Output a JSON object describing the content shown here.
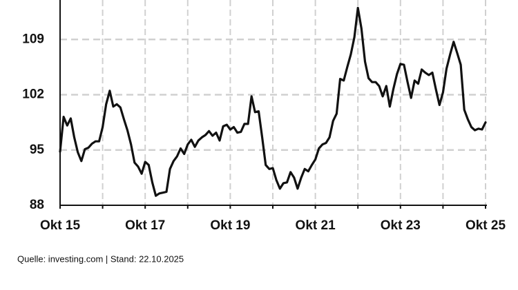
{
  "chart_data": {
    "type": "line",
    "source": "Quelle: investing.com | Stand: 22.10.2025",
    "x": [
      "2015-10",
      "2015-11",
      "2015-12",
      "2016-01",
      "2016-02",
      "2016-03",
      "2016-04",
      "2016-05",
      "2016-06",
      "2016-07",
      "2016-08",
      "2016-09",
      "2016-10",
      "2016-11",
      "2016-12",
      "2017-01",
      "2017-02",
      "2017-03",
      "2017-04",
      "2017-05",
      "2017-06",
      "2017-07",
      "2017-08",
      "2017-09",
      "2017-10",
      "2017-11",
      "2017-12",
      "2018-01",
      "2018-02",
      "2018-03",
      "2018-04",
      "2018-05",
      "2018-06",
      "2018-07",
      "2018-08",
      "2018-09",
      "2018-10",
      "2018-11",
      "2018-12",
      "2019-01",
      "2019-02",
      "2019-03",
      "2019-04",
      "2019-05",
      "2019-06",
      "2019-07",
      "2019-08",
      "2019-09",
      "2019-10",
      "2019-11",
      "2019-12",
      "2020-01",
      "2020-02",
      "2020-03",
      "2020-04",
      "2020-05",
      "2020-06",
      "2020-07",
      "2020-08",
      "2020-09",
      "2020-10",
      "2020-11",
      "2020-12",
      "2021-01",
      "2021-02",
      "2021-03",
      "2021-04",
      "2021-05",
      "2021-06",
      "2021-07",
      "2021-08",
      "2021-09",
      "2021-10",
      "2021-11",
      "2021-12",
      "2022-01",
      "2022-02",
      "2022-03",
      "2022-04",
      "2022-05",
      "2022-06",
      "2022-07",
      "2022-08",
      "2022-09",
      "2022-10",
      "2022-11",
      "2022-12",
      "2023-01",
      "2023-02",
      "2023-03",
      "2023-04",
      "2023-05",
      "2023-06",
      "2023-07",
      "2023-08",
      "2023-09",
      "2023-10",
      "2023-11",
      "2023-12",
      "2024-01",
      "2024-02",
      "2024-03",
      "2024-04",
      "2024-05",
      "2024-06",
      "2024-07",
      "2024-08",
      "2024-09",
      "2024-10",
      "2024-11",
      "2024-12",
      "2025-01",
      "2025-02",
      "2025-03",
      "2025-04",
      "2025-05",
      "2025-06",
      "2025-07",
      "2025-08",
      "2025-09",
      "2025-10"
    ],
    "series": [
      {
        "color": "#111111",
        "values": [
          94.8,
          99.2,
          98.1,
          99.0,
          96.6,
          94.7,
          93.6,
          95.1,
          95.3,
          95.8,
          96.1,
          96.1,
          97.9,
          100.8,
          102.5,
          100.5,
          100.8,
          100.4,
          98.9,
          97.5,
          95.7,
          93.4,
          92.9,
          92.0,
          93.5,
          93.1,
          90.9,
          89.2,
          89.5,
          89.6,
          89.7,
          92.6,
          93.6,
          94.2,
          95.2,
          94.5,
          95.7,
          96.3,
          95.4,
          96.2,
          96.6,
          96.9,
          97.4,
          96.8,
          97.2,
          96.2,
          98.0,
          98.2,
          97.6,
          97.9,
          97.2,
          97.3,
          98.3,
          98.3,
          101.8,
          99.8,
          99.9,
          96.6,
          93.1,
          92.6,
          92.7,
          91.2,
          90.1,
          90.8,
          90.9,
          92.2,
          91.5,
          90.1,
          91.5,
          92.6,
          92.3,
          93.1,
          93.8,
          95.2,
          95.7,
          95.9,
          96.6,
          98.7,
          99.6,
          104.0,
          103.8,
          105.5,
          107.1,
          109.3,
          113.0,
          110.4,
          106.2,
          104.1,
          103.6,
          103.6,
          103.1,
          101.8,
          103.1,
          100.5,
          102.7,
          104.6,
          105.9,
          105.8,
          103.6,
          101.6,
          103.8,
          103.4,
          105.2,
          104.8,
          104.5,
          104.8,
          102.7,
          100.7,
          102.3,
          105.3,
          107.1,
          108.7,
          107.3,
          105.8,
          100.1,
          98.9,
          97.9,
          97.5,
          97.7,
          97.6,
          98.5
        ]
      }
    ],
    "xlim": [
      "2015-10",
      "2025-10"
    ],
    "xticks": [
      {
        "value": "2015-10",
        "label": "Okt 15"
      },
      {
        "value": "2017-10",
        "label": "Okt 17"
      },
      {
        "value": "2019-10",
        "label": "Okt 19"
      },
      {
        "value": "2021-10",
        "label": "Okt 21"
      },
      {
        "value": "2023-10",
        "label": "Okt 23"
      },
      {
        "value": "2025-10",
        "label": "Okt 25"
      }
    ],
    "xminorticks": [
      "2016-10",
      "2018-10",
      "2020-10",
      "2022-10",
      "2024-10"
    ],
    "ylim": [
      88,
      114
    ],
    "yticks": [
      88,
      95,
      102,
      109
    ],
    "grid": true
  }
}
